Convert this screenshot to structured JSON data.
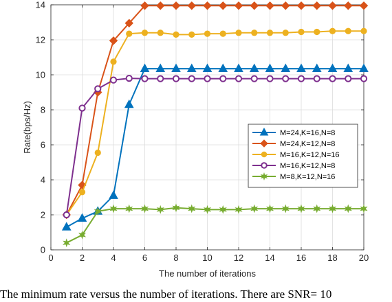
{
  "chart_data": {
    "type": "line",
    "xlabel": "The number of iterations",
    "ylabel": "Rate(bps/Hz)",
    "xlim": [
      0,
      20
    ],
    "ylim": [
      0,
      14
    ],
    "xticks": [
      "0",
      "2",
      "4",
      "6",
      "8",
      "10",
      "12",
      "14",
      "16",
      "18",
      "20"
    ],
    "yticks": [
      "0",
      "2",
      "4",
      "6",
      "8",
      "10",
      "12",
      "14"
    ],
    "grid": true,
    "legend_position": "center-right",
    "x": [
      1,
      2,
      3,
      4,
      5,
      6,
      7,
      8,
      9,
      10,
      11,
      12,
      13,
      14,
      15,
      16,
      17,
      18,
      19,
      20
    ],
    "series": [
      {
        "name": "M=24,K=16,N=8",
        "color": "#0072BD",
        "marker": "triangle",
        "values": [
          1.3,
          1.8,
          2.2,
          3.1,
          8.3,
          10.35,
          10.35,
          10.35,
          10.35,
          10.35,
          10.35,
          10.35,
          10.35,
          10.35,
          10.35,
          10.35,
          10.35,
          10.35,
          10.35,
          10.35
        ]
      },
      {
        "name": "M=24,K=12,N=8",
        "color": "#D95319",
        "marker": "diamond",
        "values": [
          2.0,
          3.7,
          9.0,
          11.95,
          12.95,
          13.95,
          13.95,
          13.95,
          13.95,
          13.95,
          13.95,
          13.95,
          13.95,
          13.95,
          13.95,
          13.95,
          13.95,
          13.95,
          13.95,
          13.95
        ]
      },
      {
        "name": "M=16,K=12,N=16",
        "color": "#EDB120",
        "marker": "circle",
        "values": [
          2.0,
          3.3,
          5.55,
          10.75,
          12.35,
          12.4,
          12.4,
          12.3,
          12.3,
          12.35,
          12.35,
          12.4,
          12.4,
          12.4,
          12.4,
          12.45,
          12.45,
          12.5,
          12.5,
          12.5
        ]
      },
      {
        "name": "M=16,K=12,N=8",
        "color": "#7E2F8E",
        "marker": "circle-open",
        "values": [
          2.0,
          8.1,
          9.2,
          9.7,
          9.8,
          9.78,
          9.78,
          9.78,
          9.78,
          9.78,
          9.78,
          9.78,
          9.78,
          9.78,
          9.78,
          9.78,
          9.78,
          9.78,
          9.78,
          9.78
        ]
      },
      {
        "name": "M=8,K=12,N=16",
        "color": "#77AC30",
        "marker": "star",
        "values": [
          0.4,
          0.85,
          2.2,
          2.35,
          2.35,
          2.35,
          2.3,
          2.4,
          2.35,
          2.3,
          2.3,
          2.3,
          2.35,
          2.35,
          2.35,
          2.35,
          2.35,
          2.35,
          2.35,
          2.35
        ]
      }
    ]
  },
  "caption": "The minimum rate versus the number of iterations. There are SNR= 10"
}
